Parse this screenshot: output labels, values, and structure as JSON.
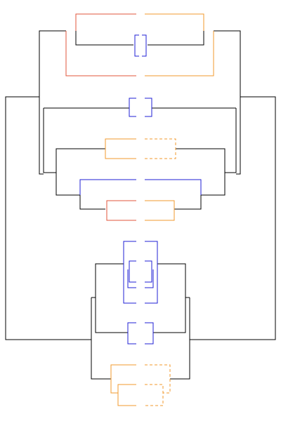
{
  "diagram": {
    "type": "mirrored-dendrogram",
    "colors": {
      "black": "#000000",
      "blue": "#1f1fd6",
      "orange": "#f29a2e",
      "red": "#e2553b",
      "background": "#ffffff"
    },
    "legend_note": ""
  }
}
